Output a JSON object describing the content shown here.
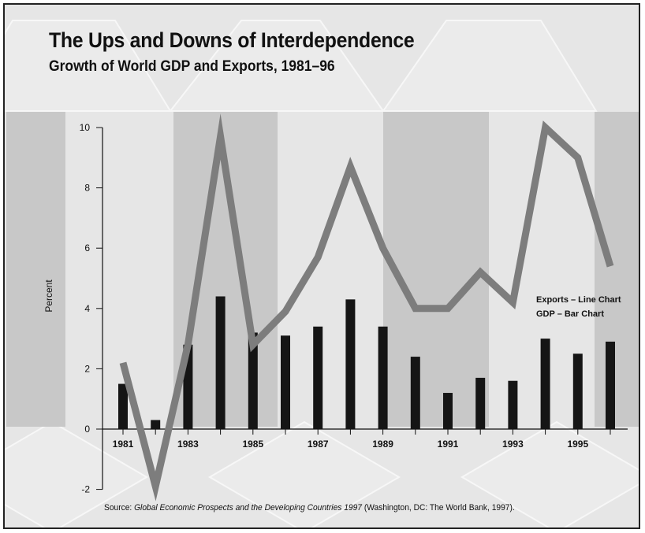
{
  "title": "The Ups and Downs of Interdependence",
  "subtitle": "Growth of World GDP and Exports, 1981–96",
  "source": {
    "prefix": "Source: ",
    "italic": "Global Economic Prospects and the Developing Countries 1997",
    "suffix": " (Washington, DC: The World Bank, 1997)."
  },
  "colors": {
    "background": "#e6e6e6",
    "band": "#c8c8c8",
    "bars": "#151515",
    "line": "#7d7d7d",
    "axis": "#111111"
  },
  "chart_data": {
    "type": "bar+line",
    "categories": [
      "1981",
      "1982",
      "1983",
      "1984",
      "1985",
      "1986",
      "1987",
      "1988",
      "1989",
      "1990",
      "1991",
      "1992",
      "1993",
      "1994",
      "1995",
      "1996"
    ],
    "x_tick_labels": [
      "1981",
      "1983",
      "1985",
      "1987",
      "1989",
      "1991",
      "1993",
      "1995"
    ],
    "series": [
      {
        "name": "GDP – Bar Chart",
        "type": "bar",
        "values": [
          1.5,
          0.3,
          2.8,
          4.4,
          3.2,
          3.1,
          3.4,
          4.3,
          3.4,
          2.4,
          1.2,
          1.7,
          1.6,
          3.0,
          2.5,
          2.9
        ]
      },
      {
        "name": "Exports – Line Chart",
        "type": "line",
        "values": [
          2.2,
          -1.9,
          2.8,
          9.7,
          2.8,
          3.9,
          5.7,
          8.7,
          6.0,
          4.0,
          4.0,
          5.2,
          4.2,
          10.0,
          9.0,
          5.4
        ]
      }
    ],
    "ylabel": "Percent",
    "xlabel": "",
    "ylim": [
      -2,
      10
    ],
    "y_ticks": [
      -2,
      0,
      2,
      4,
      6,
      8,
      10
    ],
    "legend": [
      "Exports – Line Chart",
      "GDP – Bar Chart"
    ],
    "legend_position": "right",
    "grid": false
  }
}
